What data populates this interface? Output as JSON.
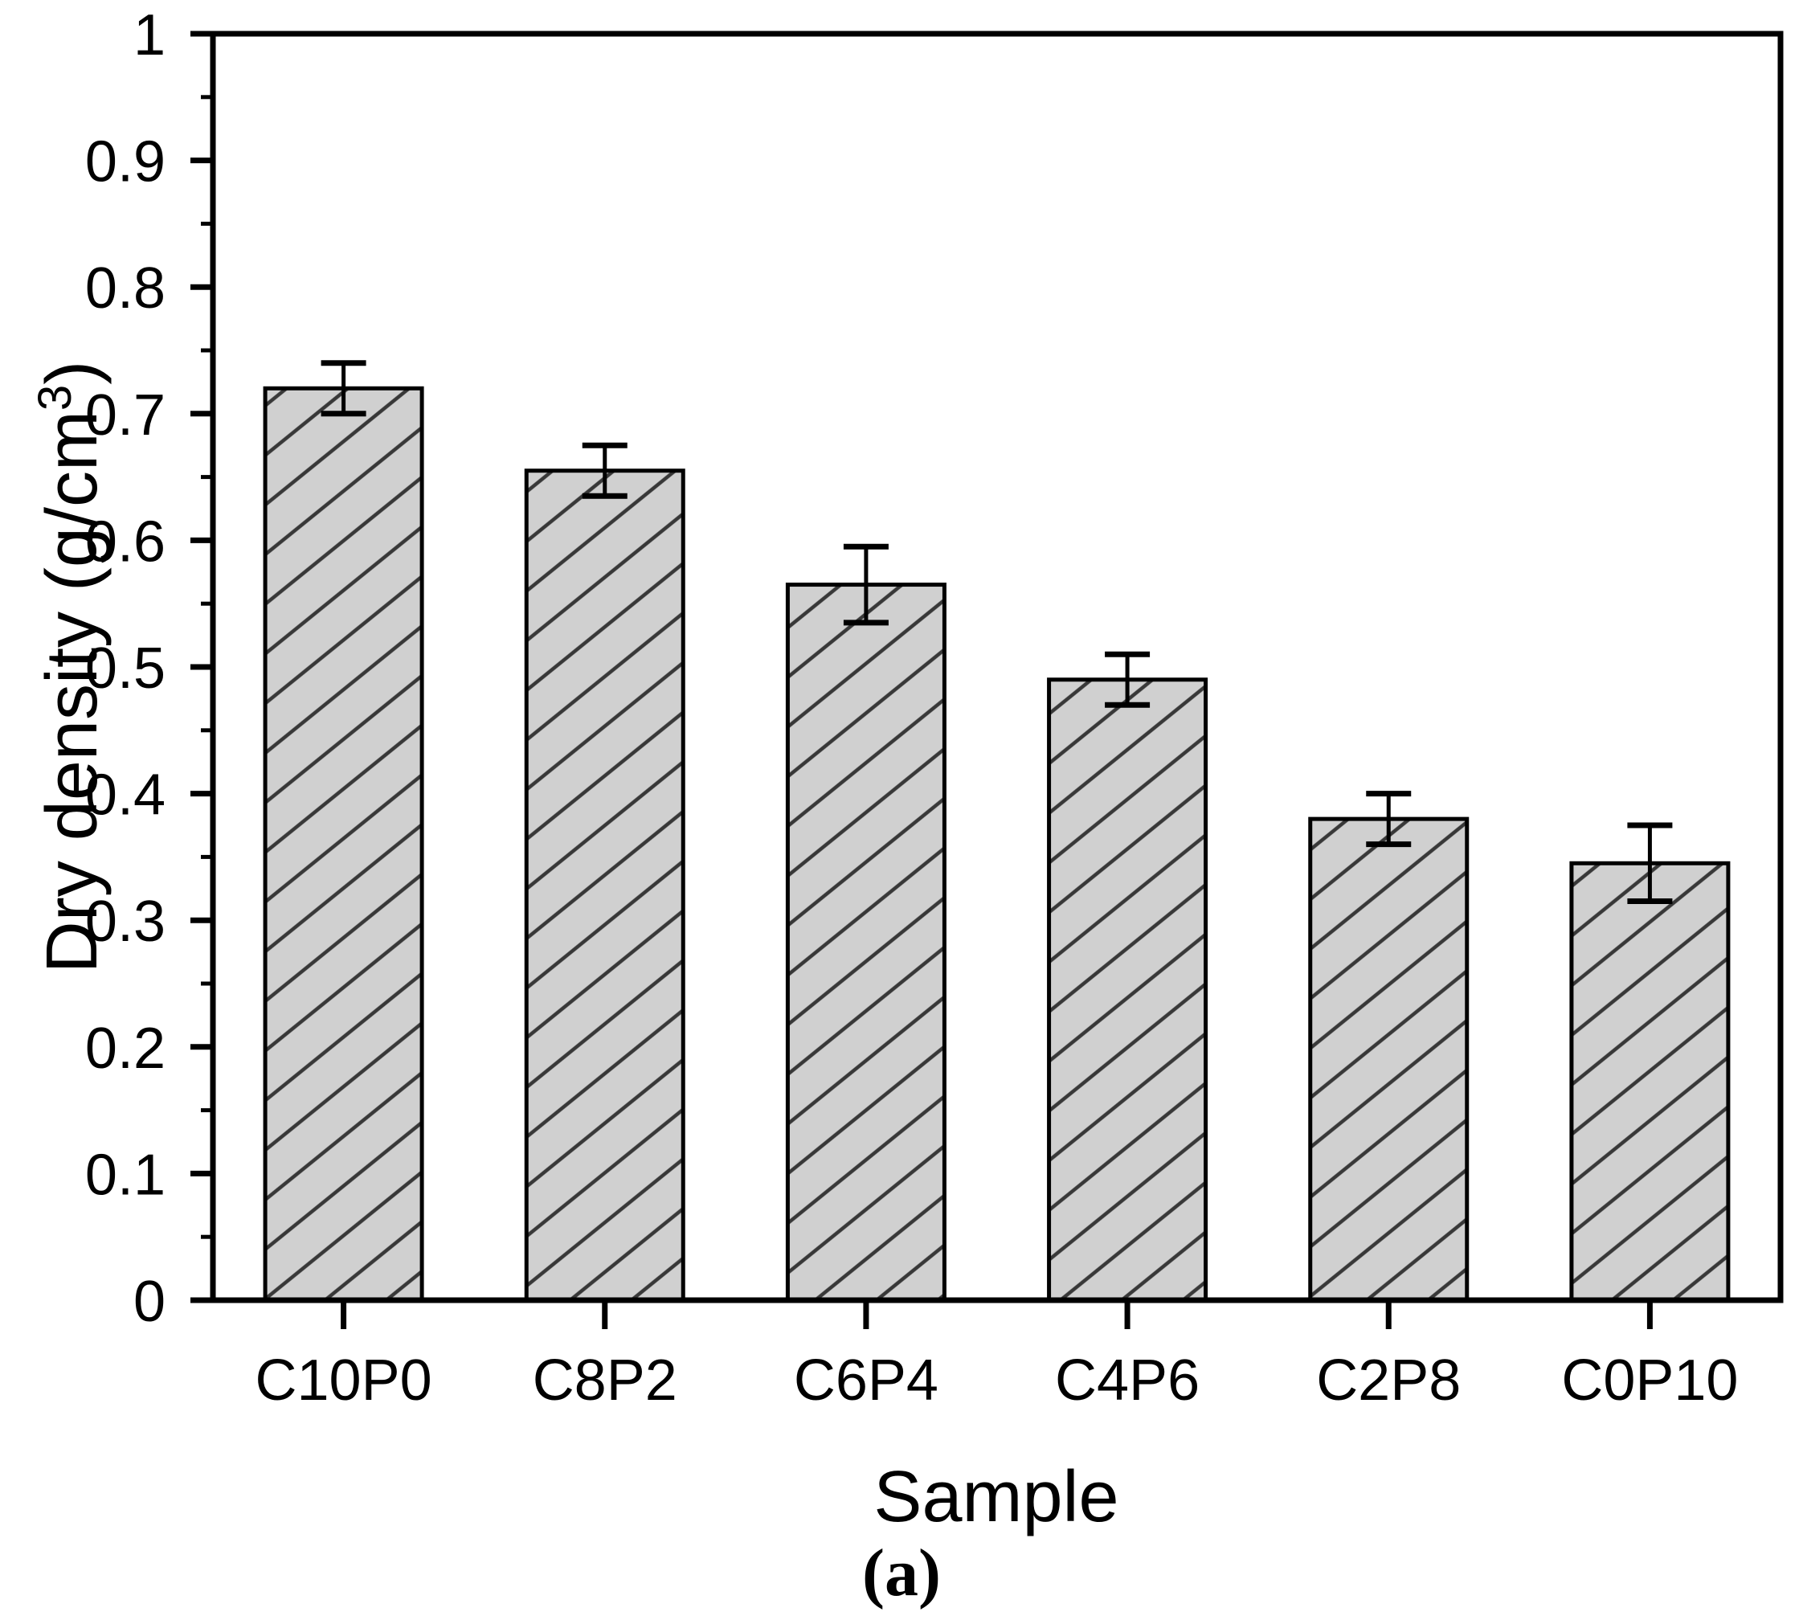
{
  "figure": {
    "caption": "(a)"
  },
  "chart_data": {
    "type": "bar",
    "title": "",
    "xlabel": "Sample",
    "ylabel": "Dry density (g/cm³)",
    "ylabel_parts": {
      "pre": "Dry density (g/cm",
      "sup": "3",
      "post": ")"
    },
    "categories": [
      "C10P0",
      "C8P2",
      "C6P4",
      "C4P6",
      "C2P8",
      "C0P10"
    ],
    "values": [
      0.72,
      0.655,
      0.565,
      0.49,
      0.38,
      0.345
    ],
    "errors": [
      0.02,
      0.02,
      0.03,
      0.02,
      0.02,
      0.03
    ],
    "ylim": [
      0,
      1
    ],
    "y_major_step": 0.1,
    "y_minor_step": 0.05,
    "y_tick_labels": [
      "0",
      "0.1",
      "0.2",
      "0.3",
      "0.4",
      "0.5",
      "0.6",
      "0.7",
      "0.8",
      "0.9",
      "1"
    ],
    "grid": false,
    "legend": null,
    "bar_hatch": "diagonal-forward",
    "colors": {
      "background": "#ffffff",
      "bar_fill": "#d0d0d0",
      "hatch_line": "#383838",
      "bar_edge": "#000000",
      "error_bar": "#000000",
      "axis": "#000000",
      "text": "#000000"
    }
  }
}
